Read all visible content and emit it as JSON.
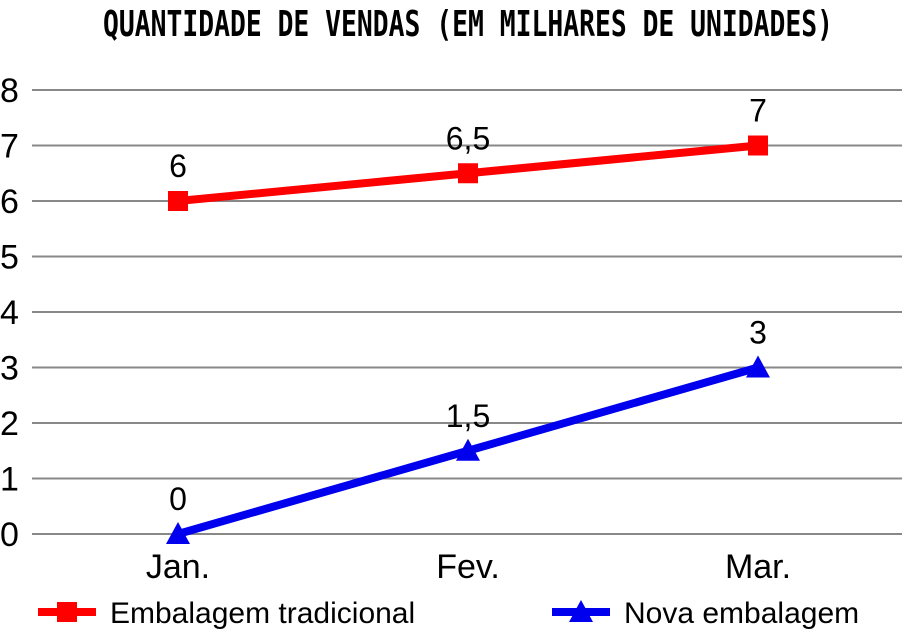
{
  "chart_data": {
    "type": "line",
    "title": "QUANTIDADE DE VENDAS (EM MILHARES DE UNIDADES)",
    "categories": [
      "Jan.",
      "Fev.",
      "Mar."
    ],
    "y_ticks": [
      "0",
      "1",
      "2",
      "3",
      "4",
      "5",
      "6",
      "7",
      "8"
    ],
    "ylim": [
      0,
      8
    ],
    "grid": true,
    "legend_position": "bottom",
    "series": [
      {
        "name": "Embalagem tradicional",
        "values": [
          6,
          6.5,
          7
        ],
        "labels": [
          "6",
          "6,5",
          "7"
        ],
        "color": "#ff0000",
        "marker": "square"
      },
      {
        "name": "Nova embalagem",
        "values": [
          0,
          1.5,
          3
        ],
        "labels": [
          "0",
          "1,5",
          "3"
        ],
        "color": "#0000ee",
        "marker": "triangle"
      }
    ]
  }
}
